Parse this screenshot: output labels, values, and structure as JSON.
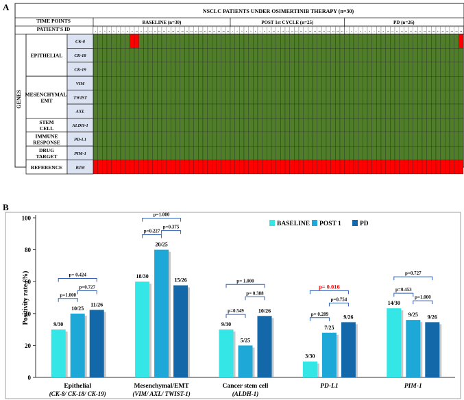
{
  "panel_labels": {
    "a": "A",
    "b": "B"
  },
  "colors": {
    "positive": "#ff0000",
    "negative": "#4f7d2a",
    "gene_cell": "#dbe2f1",
    "grid": "#222222",
    "baseline": "#34e6e6",
    "post1": "#1ea8d8",
    "pd": "#1268a8",
    "bracket": "#2f5fb3",
    "significant": "#ff0000"
  },
  "heatmap": {
    "title": "NSCLC PATIENTS UNDER OSIMERTINIB THERAPY (n=30)",
    "time_points_label": "TIME POINTS",
    "patients_label": "PATIENT'S ID",
    "genes_label": "GENES",
    "groups": [
      {
        "name": "BASELINE (n=30)",
        "n": 30
      },
      {
        "name": "POST 1st CYCLE (n=25)",
        "n": 25
      },
      {
        "name": "PD (n=26)",
        "n": 26
      }
    ],
    "categories": [
      {
        "name": "EPITHELIAL",
        "genes": [
          "CK-8",
          "CK-18",
          "CK-19"
        ]
      },
      {
        "name": "MESENCHYMAL/ EMT",
        "genes": [
          "VIM",
          "TWIST",
          "AXL"
        ]
      },
      {
        "name": "STEM CELL",
        "genes": [
          "ALDH-1"
        ]
      },
      {
        "name": "IMMUNE RESPONSE",
        "genes": [
          "PD-L1"
        ]
      },
      {
        "name": "DRUG TARGET",
        "genes": [
          "PIM-1"
        ]
      },
      {
        "name": "REFERENCE",
        "genes": [
          "B2M"
        ]
      }
    ],
    "rows": [
      {
        "gene": "CK-8",
        "baseline": "000000001100000000000000000000",
        "post1": "0000000000000000000000000",
        "pd": "00000000000000000000000001"
      },
      {
        "gene": "CK-18",
        "baseline": "000000000000000000000000000000",
        "post1": "0000000000000000000000000",
        "pd": "00000000000000000000000000"
      },
      {
        "gene": "CK-19",
        "baseline": "000000000000000000000000000000",
        "post1": "0000000000000000000000000",
        "pd": "00000000000000000000000000"
      },
      {
        "gene": "VIM",
        "baseline": "000000000000000000000000000000",
        "post1": "0000000000000000000000000",
        "pd": "00000000000000000000000000"
      },
      {
        "gene": "TWIST",
        "baseline": "000000000000000000000000000000",
        "post1": "0000000000000000000000000",
        "pd": "00000000000000000000000000"
      },
      {
        "gene": "AXL",
        "baseline": "000000000000000000000000000000",
        "post1": "0000000000000000000000000",
        "pd": "00000000000000000000000000"
      },
      {
        "gene": "ALDH-1",
        "baseline": "000000000000000000000000000000",
        "post1": "0000000000000000000000000",
        "pd": "00000000000000000000000000"
      },
      {
        "gene": "PD-L1",
        "baseline": "000000000000000000000000000000",
        "post1": "0000000000000000000000000",
        "pd": "00000000000000000000000000"
      },
      {
        "gene": "PIM-1",
        "baseline": "000000000000000000000000000000",
        "post1": "0000000000000000000000000",
        "pd": "00000000000000000000000000"
      },
      {
        "gene": "B2M",
        "baseline": "111111111111111111111111111111",
        "post1": "1111111111111111111111111",
        "pd": "11111111111111111111111111"
      }
    ]
  },
  "chart_data": {
    "type": "bar",
    "ylabel": "Positivity rate (%)",
    "ylim": [
      0,
      100
    ],
    "yticks": [
      0,
      20,
      40,
      60,
      80,
      100
    ],
    "legend_position": "top-right",
    "categories": [
      {
        "line1": "Epithelial",
        "line2": "(CK-8/ CK-18/ CK-19)"
      },
      {
        "line1": "Mesenchymal/EMT",
        "line2": "(VIM/ AXL/ TWIST-1)"
      },
      {
        "line1": "Cancer stem cell",
        "line2": "(ALDH-1)"
      },
      {
        "line1": "PD-L1",
        "line2": ""
      },
      {
        "line1": "PIM-1",
        "line2": ""
      }
    ],
    "series": [
      {
        "name": "BASELINE",
        "values": [
          30.0,
          60.0,
          30.0,
          10.0,
          43.3
        ],
        "labels": [
          "9/30",
          "18/30",
          "9/30",
          "3/30",
          "14/30"
        ]
      },
      {
        "name": "POST 1",
        "values": [
          40.0,
          80.0,
          20.0,
          28.0,
          36.0
        ],
        "labels": [
          "10/25",
          "20/25",
          "5/25",
          "7/25",
          "9/25"
        ]
      },
      {
        "name": "PD",
        "values": [
          42.3,
          57.7,
          38.5,
          34.6,
          34.6
        ],
        "labels": [
          "11/26",
          "15/26",
          "10/26",
          "9/26",
          "9/26"
        ]
      }
    ],
    "comparisons": [
      [
        {
          "a": 0,
          "b": 1,
          "label": "p=1.000",
          "level": 0
        },
        {
          "a": 1,
          "b": 2,
          "label": "p=0.727",
          "level": 1
        },
        {
          "a": 0,
          "b": 2,
          "label": "p= 0.424",
          "level": 2,
          "significant": false
        }
      ],
      [
        {
          "a": 0,
          "b": 1,
          "label": "p=0.227",
          "level": 0
        },
        {
          "a": 1,
          "b": 2,
          "label": "p=0.375",
          "level": 1
        },
        {
          "a": 0,
          "b": 2,
          "label": "p=1.000",
          "level": 2
        }
      ],
      [
        {
          "a": 0,
          "b": 1,
          "label": "p=0.549",
          "level": 0
        },
        {
          "a": 1,
          "b": 2,
          "label": "p= 0.388",
          "level": 1
        },
        {
          "a": 0,
          "b": 2,
          "label": "p= 1.000",
          "level": 2
        }
      ],
      [
        {
          "a": 0,
          "b": 1,
          "label": "p= 0.289",
          "level": 0
        },
        {
          "a": 1,
          "b": 2,
          "label": "p=0.754",
          "level": 1
        },
        {
          "a": 0,
          "b": 2,
          "label": "p= 0.016",
          "level": 2,
          "significant": true
        }
      ],
      [
        {
          "a": 0,
          "b": 1,
          "label": "p=0.453",
          "level": 0
        },
        {
          "a": 1,
          "b": 2,
          "label": "p=1.000",
          "level": 1
        },
        {
          "a": 0,
          "b": 2,
          "label": "p=0.727",
          "level": 2
        }
      ]
    ]
  }
}
